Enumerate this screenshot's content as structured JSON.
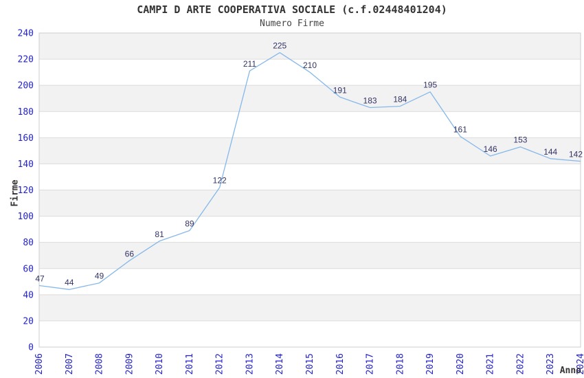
{
  "chart_data": {
    "type": "line",
    "title": "CAMPI D ARTE COOPERATIVA SOCIALE (c.f.02448401204)",
    "subtitle": "Numero Firme",
    "xlabel": "Anno",
    "ylabel": "Firme",
    "categories": [
      "2006",
      "2007",
      "2008",
      "2009",
      "2010",
      "2011",
      "2012",
      "2013",
      "2014",
      "2015",
      "2016",
      "2017",
      "2018",
      "2019",
      "2020",
      "2021",
      "2022",
      "2023",
      "2024"
    ],
    "values": [
      47,
      44,
      49,
      66,
      81,
      89,
      122,
      211,
      225,
      210,
      191,
      183,
      184,
      195,
      161,
      146,
      153,
      144,
      142
    ],
    "ylim": [
      0,
      240
    ],
    "ytick_step": 20,
    "yticks": [
      0,
      20,
      40,
      60,
      80,
      100,
      120,
      140,
      160,
      180,
      200,
      220,
      240
    ],
    "grid": "horizontal-bands-alternating",
    "legend": "none",
    "point_markers": false,
    "colors": {
      "line": "#85b8ea",
      "tick_labels": "#2222cc",
      "data_labels": "#333366",
      "band_fill": "#f2f2f2",
      "band_alt_fill": "#ffffff",
      "plot_border": "#cccccc",
      "gridline": "#dcdcdc",
      "title_text": "#333333"
    }
  }
}
